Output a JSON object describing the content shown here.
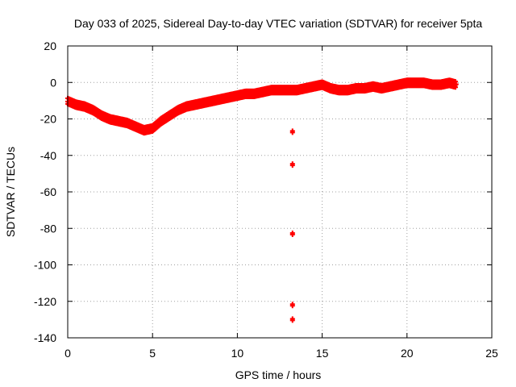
{
  "chart_data": {
    "type": "scatter",
    "title": "Day 033 of 2025, Sidereal Day-to-day VTEC variation (SDTVAR) for receiver 5pta",
    "xlabel": "GPS time / hours",
    "ylabel": "SDTVAR / TECUs",
    "xlim": [
      0,
      25
    ],
    "ylim": [
      -140,
      20
    ],
    "xticks": [
      0,
      5,
      10,
      15,
      20,
      25
    ],
    "yticks": [
      20,
      0,
      -20,
      -40,
      -60,
      -80,
      -100,
      -120,
      -140
    ],
    "grid": true,
    "series": [
      {
        "name": "SDTVAR",
        "color": "#ff0000",
        "marker": "plus",
        "band": [
          [
            0.0,
            -10
          ],
          [
            0.5,
            -12
          ],
          [
            1.0,
            -13
          ],
          [
            1.5,
            -15
          ],
          [
            2.0,
            -18
          ],
          [
            2.5,
            -20
          ],
          [
            3.0,
            -21
          ],
          [
            3.5,
            -22
          ],
          [
            4.0,
            -24
          ],
          [
            4.5,
            -26
          ],
          [
            5.0,
            -25
          ],
          [
            5.5,
            -21
          ],
          [
            6.0,
            -18
          ],
          [
            6.5,
            -15
          ],
          [
            7.0,
            -13
          ],
          [
            7.5,
            -12
          ],
          [
            8.0,
            -11
          ],
          [
            8.5,
            -10
          ],
          [
            9.0,
            -9
          ],
          [
            9.5,
            -8
          ],
          [
            10.0,
            -7
          ],
          [
            10.5,
            -6
          ],
          [
            11.0,
            -6
          ],
          [
            11.5,
            -5
          ],
          [
            12.0,
            -4
          ],
          [
            12.5,
            -4
          ],
          [
            13.0,
            -4
          ],
          [
            13.5,
            -4
          ],
          [
            14.0,
            -3
          ],
          [
            14.5,
            -2
          ],
          [
            15.0,
            -1
          ],
          [
            15.5,
            -3
          ],
          [
            16.0,
            -4
          ],
          [
            16.5,
            -4
          ],
          [
            17.0,
            -3
          ],
          [
            17.5,
            -3
          ],
          [
            18.0,
            -2
          ],
          [
            18.5,
            -3
          ],
          [
            19.0,
            -2
          ],
          [
            19.5,
            -1
          ],
          [
            20.0,
            0
          ],
          [
            20.5,
            0
          ],
          [
            21.0,
            0
          ],
          [
            21.5,
            -1
          ],
          [
            22.0,
            -1
          ],
          [
            22.5,
            0
          ],
          [
            22.9,
            -1
          ]
        ],
        "outliers": [
          [
            13.25,
            -27
          ],
          [
            13.25,
            -45
          ],
          [
            13.25,
            -83
          ],
          [
            13.25,
            -122
          ],
          [
            13.25,
            -130
          ]
        ]
      }
    ]
  }
}
